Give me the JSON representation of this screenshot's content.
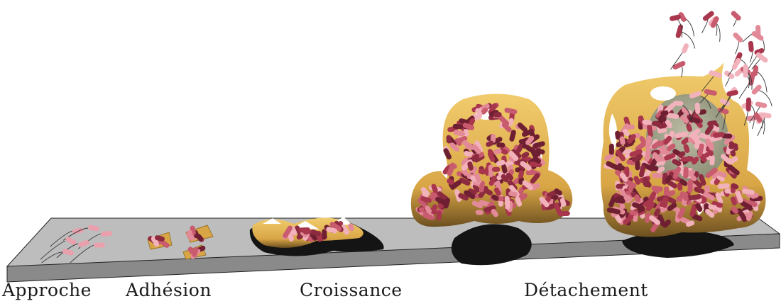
{
  "stages": [
    {
      "id": "approche",
      "label": "Approche"
    },
    {
      "id": "adhesion",
      "label": "Adhésion"
    },
    {
      "id": "croissance",
      "label": "Croissance"
    },
    {
      "id": "detachement",
      "label": "Détachement"
    }
  ],
  "colors": {
    "substrate_top": "#bdbdbd",
    "substrate_edge": "#7a7a7a",
    "matrix": "#e4b64f",
    "matrix_dark": "#a47d28",
    "bacteria_light": "#f2b2bc",
    "bacteria_mid": "#c85b6e",
    "bacteria_dark": "#6e1f31",
    "shadow": "#141414"
  }
}
